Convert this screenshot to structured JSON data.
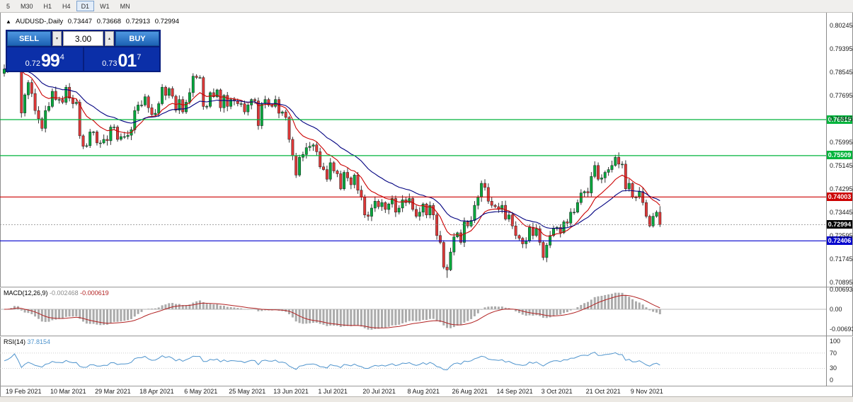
{
  "toolbar": {
    "timeframes": [
      "5",
      "M30",
      "H1",
      "H4",
      "D1",
      "W1",
      "MN"
    ],
    "active": "D1"
  },
  "icons": {
    "collapse": "▲",
    "spin_down": "▾",
    "spin_up": "▴"
  },
  "chart": {
    "symbol_header": "AUDUSD-,Daily",
    "ohlc": {
      "open": "0.73447",
      "high": "0.73668",
      "low": "0.72913",
      "close": "0.72994"
    },
    "one_click": {
      "sell_label": "SELL",
      "buy_label": "BUY",
      "volume": "3.00",
      "bid": {
        "prefix": "0.72",
        "big": "99",
        "sup": "4"
      },
      "ask": {
        "prefix": "0.73",
        "big": "01",
        "sup": "7"
      }
    },
    "y_axis_labels": [
      "0.80245",
      "0.79395",
      "0.78545",
      "0.77695",
      "0.76845",
      "0.75995",
      "0.75145",
      "0.74295",
      "0.73445",
      "0.72595",
      "0.71745",
      "0.70895"
    ],
    "current_price": {
      "value": 0.72994,
      "label": "0.72994",
      "color": "#000000"
    }
  },
  "macd": {
    "label": "MACD(12,26,9)",
    "value_main": "-0.002468",
    "value_signal": "-0.000619",
    "axis": [
      "0.006936",
      "0.00",
      "-0.006936"
    ]
  },
  "rsi": {
    "label": "RSI(14)",
    "value": "37.8154",
    "axis": [
      "100",
      "70",
      "30",
      "0"
    ]
  },
  "date_axis": [
    {
      "i": 0,
      "label": "19 Feb 2021"
    },
    {
      "i": 13,
      "label": "10 Mar 2021"
    },
    {
      "i": 26,
      "label": "29 Mar 2021"
    },
    {
      "i": 39,
      "label": "18 Apr 2021"
    },
    {
      "i": 52,
      "label": "6 May 2021"
    },
    {
      "i": 65,
      "label": "25 May 2021"
    },
    {
      "i": 78,
      "label": "13 Jun 2021"
    },
    {
      "i": 91,
      "label": "1 Jul 2021"
    },
    {
      "i": 104,
      "label": "20 Jul 2021"
    },
    {
      "i": 117,
      "label": "8 Aug 2021"
    },
    {
      "i": 130,
      "label": "26 Aug 2021"
    },
    {
      "i": 143,
      "label": "14 Sep 2021"
    },
    {
      "i": 156,
      "label": "3 Oct 2021"
    },
    {
      "i": 169,
      "label": "21 Oct 2021"
    },
    {
      "i": 182,
      "label": "9 Nov 2021"
    }
  ],
  "chart_data": {
    "type": "candlestick",
    "symbol": "AUDUSD",
    "timeframe": "Daily",
    "y_range": [
      0.70895,
      0.80245
    ],
    "y_tick_step": 0.0085,
    "first_open": 0.785,
    "closes": [
      0.7866,
      0.788,
      0.791,
      0.797,
      0.7891,
      0.7706,
      0.7772,
      0.7817,
      0.7777,
      0.7715,
      0.7685,
      0.765,
      0.7715,
      0.773,
      0.7785,
      0.7755,
      0.7755,
      0.7745,
      0.78,
      0.776,
      0.774,
      0.7745,
      0.7623,
      0.7585,
      0.7587,
      0.7637,
      0.7637,
      0.7597,
      0.7597,
      0.761,
      0.7605,
      0.7655,
      0.7655,
      0.761,
      0.762,
      0.762,
      0.7625,
      0.7645,
      0.7715,
      0.7735,
      0.7735,
      0.7765,
      0.7725,
      0.77,
      0.7705,
      0.774,
      0.78,
      0.777,
      0.7795,
      0.7767,
      0.7716,
      0.7755,
      0.771,
      0.7745,
      0.778,
      0.784,
      0.7835,
      0.7835,
      0.773,
      0.773,
      0.778,
      0.7765,
      0.779,
      0.7725,
      0.777,
      0.773,
      0.7755,
      0.775,
      0.774,
      0.774,
      0.771,
      0.7735,
      0.7755,
      0.775,
      0.766,
      0.774,
      0.7755,
      0.7735,
      0.773,
      0.7755,
      0.7705,
      0.771,
      0.769,
      0.761,
      0.755,
      0.748,
      0.7545,
      0.7555,
      0.758,
      0.7585,
      0.759,
      0.7565,
      0.751,
      0.75,
      0.7465,
      0.7525,
      0.7495,
      0.7485,
      0.743,
      0.749,
      0.747,
      0.7445,
      0.748,
      0.7425,
      0.74,
      0.7335,
      0.733,
      0.736,
      0.7385,
      0.7365,
      0.738,
      0.7355,
      0.7375,
      0.7395,
      0.7345,
      0.736,
      0.739,
      0.738,
      0.7395,
      0.7355,
      0.733,
      0.7345,
      0.7375,
      0.7335,
      0.737,
      0.7335,
      0.726,
      0.7235,
      0.7145,
      0.7135,
      0.72,
      0.7255,
      0.727,
      0.7235,
      0.731,
      0.7295,
      0.7315,
      0.737,
      0.74,
      0.745,
      0.7435,
      0.7385,
      0.737,
      0.7365,
      0.7355,
      0.737,
      0.732,
      0.7335,
      0.7295,
      0.726,
      0.725,
      0.723,
      0.724,
      0.729,
      0.726,
      0.7285,
      0.7235,
      0.718,
      0.7225,
      0.726,
      0.7285,
      0.729,
      0.727,
      0.731,
      0.7305,
      0.7345,
      0.7345,
      0.738,
      0.7415,
      0.742,
      0.7415,
      0.7475,
      0.7515,
      0.7465,
      0.747,
      0.749,
      0.75,
      0.7515,
      0.7545,
      0.752,
      0.752,
      0.743,
      0.745,
      0.74,
      0.74,
      0.742,
      0.738,
      0.733,
      0.7295,
      0.733,
      0.7345,
      0.72994
    ],
    "specials": {
      "4": {
        "h": 0.8007
      },
      "129": {
        "l": 0.7106
      },
      "157": {
        "l": 0.717
      },
      "191": {
        "o": 0.73447,
        "h": 0.73668,
        "l": 0.72913,
        "c": 0.72994
      }
    },
    "overlays": [
      {
        "name": "ma-fast",
        "type": "ema",
        "period": 12,
        "color": "#cc0000"
      },
      {
        "name": "ma-slow",
        "type": "ema",
        "period": 26,
        "color": "#000080"
      }
    ],
    "hlines": [
      {
        "value": 0.76819,
        "label": "0.76819",
        "color": "#00b43c"
      },
      {
        "value": 0.75509,
        "label": "0.75509",
        "color": "#00b43c"
      },
      {
        "value": 0.74003,
        "label": "0.74003",
        "color": "#cc0000"
      },
      {
        "value": 0.72406,
        "label": "0.72406",
        "color": "#0000cd"
      }
    ],
    "macd": {
      "fast": 12,
      "slow": 26,
      "signal": 9,
      "y_max": 0.006936,
      "hist_color": "#ababab",
      "signal_color": "#b22222"
    },
    "rsi": {
      "period": 14,
      "color": "#4f94cd",
      "levels": [
        30,
        70
      ]
    },
    "candle_up": "#00a83c",
    "candle_down": "#df3838",
    "wick_color": "#333333"
  }
}
